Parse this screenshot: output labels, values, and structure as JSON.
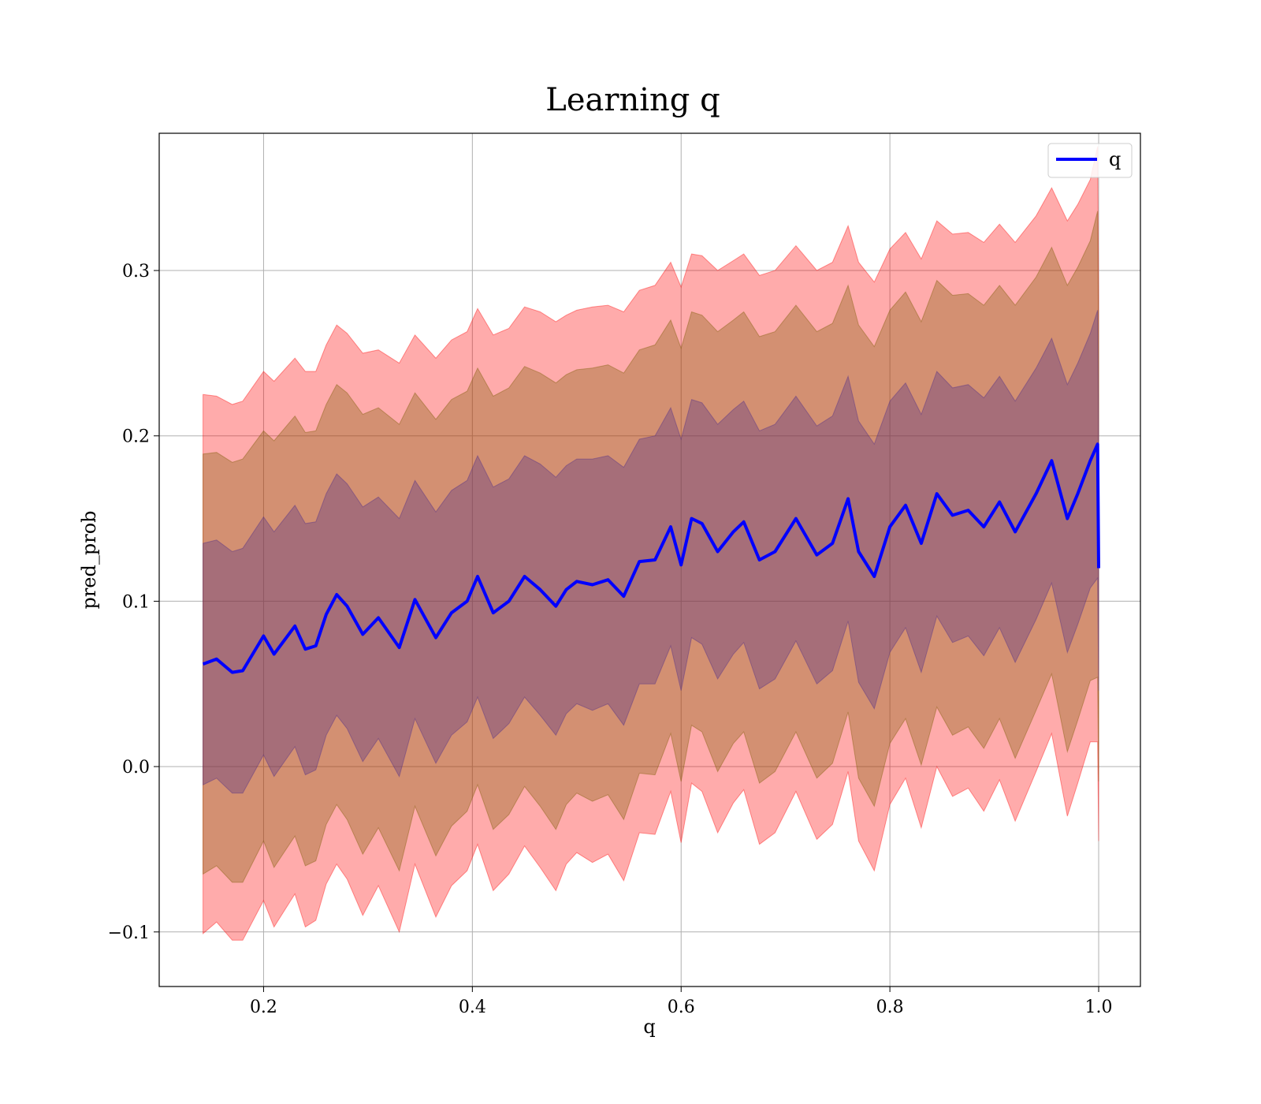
{
  "chart_data": {
    "type": "area",
    "title": "Learning q",
    "xlabel": "q",
    "ylabel": "pred_prob",
    "xlim": [
      0.1,
      1.04
    ],
    "ylim": [
      -0.133,
      0.383
    ],
    "x_ticks": [
      0.2,
      0.4,
      0.6,
      0.8,
      1.0
    ],
    "x_tick_labels": [
      "0.2",
      "0.4",
      "0.6",
      "0.8",
      "1.0"
    ],
    "y_ticks": [
      -0.1,
      0.0,
      0.1,
      0.2,
      0.3
    ],
    "y_tick_labels": [
      "−0.1",
      "0.0",
      "0.1",
      "0.2",
      "0.3"
    ],
    "grid": true,
    "legend": {
      "position": "top-right",
      "entries": [
        "q"
      ]
    },
    "x": [
      0.142,
      0.155,
      0.17,
      0.18,
      0.2,
      0.21,
      0.23,
      0.24,
      0.25,
      0.26,
      0.27,
      0.28,
      0.295,
      0.31,
      0.33,
      0.345,
      0.365,
      0.38,
      0.395,
      0.405,
      0.42,
      0.435,
      0.45,
      0.465,
      0.48,
      0.49,
      0.5,
      0.515,
      0.53,
      0.545,
      0.56,
      0.575,
      0.59,
      0.6,
      0.61,
      0.62,
      0.635,
      0.65,
      0.66,
      0.675,
      0.69,
      0.71,
      0.73,
      0.745,
      0.76,
      0.77,
      0.785,
      0.8,
      0.815,
      0.83,
      0.845,
      0.86,
      0.875,
      0.89,
      0.905,
      0.92,
      0.94,
      0.955,
      0.97,
      0.98,
      0.992,
      0.999,
      1.0
    ],
    "series": [
      {
        "name": "q",
        "color": "#0000ff",
        "values": [
          0.062,
          0.065,
          0.057,
          0.058,
          0.079,
          0.068,
          0.085,
          0.071,
          0.073,
          0.092,
          0.104,
          0.097,
          0.08,
          0.09,
          0.072,
          0.101,
          0.078,
          0.093,
          0.1,
          0.115,
          0.093,
          0.1,
          0.115,
          0.107,
          0.097,
          0.107,
          0.112,
          0.11,
          0.113,
          0.103,
          0.124,
          0.125,
          0.145,
          0.122,
          0.15,
          0.147,
          0.13,
          0.142,
          0.148,
          0.125,
          0.13,
          0.15,
          0.128,
          0.135,
          0.162,
          0.13,
          0.115,
          0.145,
          0.158,
          0.135,
          0.165,
          0.152,
          0.155,
          0.145,
          0.16,
          0.142,
          0.165,
          0.185,
          0.15,
          0.165,
          0.185,
          0.195,
          0.12
        ]
      }
    ],
    "bands": [
      {
        "color": "#ff0000",
        "half_width": [
          0.163,
          0.159,
          0.162,
          0.163,
          0.16,
          0.165,
          0.162,
          0.168,
          0.166,
          0.163,
          0.163,
          0.165,
          0.17,
          0.162,
          0.172,
          0.16,
          0.169,
          0.165,
          0.163,
          0.162,
          0.168,
          0.165,
          0.163,
          0.168,
          0.172,
          0.166,
          0.164,
          0.168,
          0.166,
          0.172,
          0.164,
          0.166,
          0.16,
          0.168,
          0.16,
          0.162,
          0.17,
          0.164,
          0.162,
          0.172,
          0.17,
          0.165,
          0.172,
          0.17,
          0.165,
          0.175,
          0.178,
          0.168,
          0.165,
          0.172,
          0.165,
          0.17,
          0.168,
          0.172,
          0.168,
          0.175,
          0.168,
          0.165,
          0.18,
          0.175,
          0.17,
          0.18,
          0.165
        ]
      },
      {
        "color": "#7a5a00",
        "half_width": [
          0.127,
          0.125,
          0.127,
          0.128,
          0.124,
          0.129,
          0.127,
          0.131,
          0.13,
          0.127,
          0.127,
          0.129,
          0.133,
          0.127,
          0.135,
          0.125,
          0.132,
          0.129,
          0.127,
          0.126,
          0.131,
          0.129,
          0.127,
          0.131,
          0.135,
          0.13,
          0.128,
          0.131,
          0.13,
          0.135,
          0.128,
          0.13,
          0.125,
          0.131,
          0.125,
          0.126,
          0.133,
          0.128,
          0.127,
          0.135,
          0.133,
          0.129,
          0.135,
          0.133,
          0.129,
          0.137,
          0.139,
          0.131,
          0.129,
          0.134,
          0.129,
          0.133,
          0.131,
          0.134,
          0.131,
          0.137,
          0.131,
          0.129,
          0.141,
          0.137,
          0.133,
          0.141,
          0.129
        ]
      },
      {
        "color": "#4b2a8a",
        "half_width": [
          0.073,
          0.072,
          0.073,
          0.074,
          0.072,
          0.074,
          0.073,
          0.076,
          0.075,
          0.073,
          0.073,
          0.074,
          0.077,
          0.073,
          0.078,
          0.072,
          0.076,
          0.074,
          0.073,
          0.073,
          0.076,
          0.074,
          0.073,
          0.076,
          0.078,
          0.075,
          0.074,
          0.076,
          0.075,
          0.078,
          0.074,
          0.075,
          0.072,
          0.076,
          0.072,
          0.073,
          0.077,
          0.074,
          0.073,
          0.078,
          0.077,
          0.074,
          0.078,
          0.077,
          0.074,
          0.079,
          0.08,
          0.076,
          0.074,
          0.078,
          0.074,
          0.077,
          0.076,
          0.078,
          0.076,
          0.079,
          0.076,
          0.074,
          0.081,
          0.079,
          0.077,
          0.081,
          0.074
        ]
      }
    ]
  }
}
